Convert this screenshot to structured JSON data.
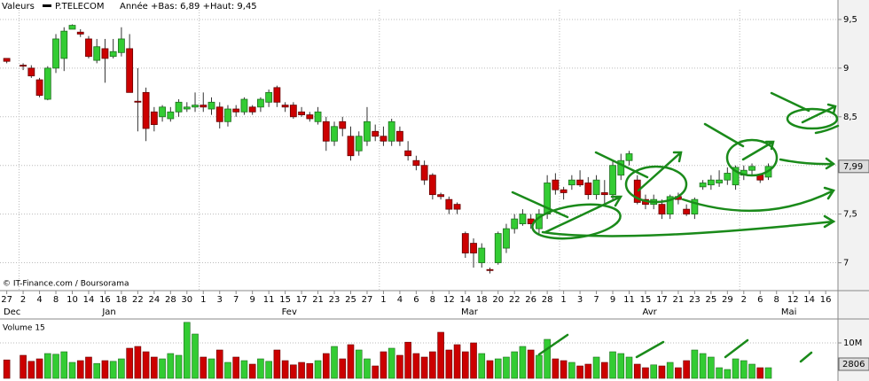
{
  "header": {
    "label": "Valeurs",
    "series_name": "P.TELECOM",
    "range_text": "Année +Bas: 6,89 +Haut: 9,45"
  },
  "copyright": "© IT-Finance.com / Boursorama",
  "volume_title": "Volume 15",
  "volume_last_label": "2806",
  "chart_data": {
    "type": "candlestick",
    "categories": [
      "27",
      null,
      "2",
      null,
      "4",
      null,
      "8",
      null,
      "10",
      null,
      "14",
      null,
      "16",
      null,
      "18",
      null,
      "22",
      null,
      "24",
      null,
      "28",
      null,
      "30",
      null,
      "1",
      null,
      "3",
      null,
      "7",
      null,
      "9",
      null,
      "11",
      null,
      "15",
      null,
      "17",
      null,
      "21",
      null,
      "23",
      null,
      "25",
      null,
      "27",
      null,
      "1",
      null,
      "4",
      null,
      "6",
      null,
      "8",
      null,
      "12",
      null,
      "14",
      null,
      "18",
      null,
      "20",
      null,
      "22",
      null,
      "26",
      null,
      "28",
      null,
      "1",
      null,
      "3",
      null,
      "7",
      null,
      "9",
      null,
      "11",
      null,
      "15",
      null,
      "17",
      null,
      "21",
      null,
      "23",
      null,
      "25",
      null,
      "29",
      null,
      "2",
      null,
      "6",
      null,
      "8",
      null,
      "12",
      null,
      "14",
      null,
      "16",
      null
    ],
    "months": [
      "Dec",
      "Jan",
      "Fev",
      "Mar",
      "Avr",
      "Mai"
    ],
    "open": [
      9.1,
      null,
      9.03,
      9.0,
      8.88,
      8.68,
      9.0,
      9.1,
      9.4,
      9.37,
      9.3,
      9.08,
      9.2,
      9.12,
      9.16,
      9.2,
      8.66,
      8.75,
      8.55,
      8.5,
      8.48,
      8.55,
      8.58,
      8.6,
      8.62,
      8.58,
      8.6,
      8.45,
      8.58,
      8.55,
      8.6,
      8.6,
      8.65,
      8.8,
      8.62,
      8.62,
      8.55,
      8.52,
      8.45,
      8.45,
      8.25,
      8.45,
      8.3,
      8.15,
      8.25,
      8.35,
      8.3,
      8.25,
      8.35,
      8.15,
      8.05,
      8.0,
      7.9,
      7.7,
      7.65,
      7.6,
      7.3,
      7.2,
      7.0,
      6.93,
      7.0,
      7.15,
      7.35,
      7.4,
      7.45,
      7.35,
      7.5,
      7.85,
      7.75,
      7.8,
      7.85,
      7.82,
      7.7,
      7.72,
      7.7,
      7.9,
      8.05,
      7.85,
      7.65,
      7.6,
      7.6,
      7.5,
      7.68,
      7.55,
      7.5,
      7.78,
      7.8,
      7.82,
      7.85,
      7.8,
      7.9,
      7.95,
      7.9,
      7.88,
      null,
      null,
      null,
      null,
      null,
      null,
      null,
      null
    ],
    "high": [
      9.1,
      null,
      9.05,
      9.03,
      8.9,
      9.02,
      9.35,
      9.42,
      9.45,
      9.4,
      9.33,
      9.3,
      9.3,
      9.3,
      9.42,
      9.35,
      9.0,
      8.8,
      8.6,
      8.62,
      8.6,
      8.68,
      8.65,
      8.75,
      8.75,
      8.7,
      8.65,
      8.62,
      8.62,
      8.7,
      8.62,
      8.7,
      8.78,
      8.82,
      8.65,
      8.65,
      8.6,
      8.55,
      8.6,
      8.5,
      8.45,
      8.5,
      8.4,
      8.35,
      8.6,
      8.42,
      8.4,
      8.48,
      8.4,
      8.25,
      8.1,
      8.05,
      7.92,
      7.72,
      7.68,
      7.62,
      7.32,
      7.25,
      7.2,
      6.95,
      7.32,
      7.4,
      7.5,
      7.55,
      7.5,
      7.55,
      7.9,
      7.92,
      7.78,
      7.9,
      7.95,
      7.88,
      7.9,
      7.85,
      8.05,
      8.12,
      8.15,
      7.9,
      7.7,
      7.7,
      7.65,
      7.7,
      7.72,
      7.6,
      7.67,
      7.85,
      7.9,
      7.95,
      7.98,
      8.0,
      8.0,
      8.02,
      7.92,
      8.02,
      null,
      null,
      null,
      null,
      null,
      null,
      null,
      null
    ],
    "low": [
      9.05,
      null,
      8.98,
      8.9,
      8.7,
      8.67,
      8.95,
      8.97,
      9.4,
      9.32,
      9.1,
      9.05,
      8.85,
      9.1,
      9.12,
      8.75,
      8.35,
      8.25,
      8.35,
      8.45,
      8.45,
      8.5,
      8.55,
      8.55,
      8.55,
      8.52,
      8.38,
      8.4,
      8.5,
      8.52,
      8.52,
      8.55,
      8.6,
      8.6,
      8.55,
      8.48,
      8.5,
      8.45,
      8.42,
      8.15,
      8.2,
      8.3,
      8.05,
      8.1,
      8.2,
      8.25,
      8.2,
      8.2,
      8.2,
      8.05,
      7.95,
      7.8,
      7.65,
      7.65,
      7.5,
      7.5,
      7.05,
      6.95,
      6.95,
      6.89,
      6.98,
      7.1,
      7.3,
      7.38,
      7.35,
      7.3,
      7.45,
      7.7,
      7.65,
      7.75,
      7.78,
      7.65,
      7.65,
      7.6,
      7.65,
      7.85,
      8.0,
      7.6,
      7.55,
      7.55,
      7.45,
      7.45,
      7.6,
      7.48,
      7.45,
      7.75,
      7.75,
      7.78,
      7.8,
      7.75,
      7.85,
      7.9,
      7.82,
      7.85,
      null,
      null,
      null,
      null,
      null,
      null,
      null,
      null
    ],
    "close": [
      9.07,
      null,
      9.02,
      8.92,
      8.72,
      9.0,
      9.3,
      9.38,
      9.44,
      9.35,
      9.12,
      9.22,
      9.1,
      9.17,
      9.3,
      8.75,
      8.65,
      8.38,
      8.42,
      8.6,
      8.55,
      8.65,
      8.6,
      8.62,
      8.6,
      8.65,
      8.45,
      8.58,
      8.55,
      8.68,
      8.55,
      8.68,
      8.75,
      8.65,
      8.6,
      8.5,
      8.52,
      8.48,
      8.55,
      8.25,
      8.4,
      8.38,
      8.1,
      8.3,
      8.45,
      8.3,
      8.25,
      8.45,
      8.25,
      8.1,
      8.0,
      7.85,
      7.7,
      7.68,
      7.55,
      7.55,
      7.1,
      7.1,
      7.15,
      6.92,
      7.3,
      7.35,
      7.45,
      7.5,
      7.4,
      7.5,
      7.82,
      7.75,
      7.72,
      7.85,
      7.8,
      7.7,
      7.85,
      7.7,
      8.0,
      8.05,
      8.12,
      7.62,
      7.6,
      7.65,
      7.5,
      7.68,
      7.65,
      7.5,
      7.65,
      7.82,
      7.85,
      7.85,
      7.92,
      7.98,
      7.95,
      7.99,
      7.85,
      7.99,
      null,
      null,
      null,
      null,
      null,
      null,
      null,
      null
    ],
    "up_color": "#33cc33",
    "down_color": "#cc0000",
    "ylim": [
      6.85,
      9.6
    ],
    "yticks": [
      7,
      {
        "value": 7.5,
        "label": "7,5"
      },
      8,
      {
        "value": 8.5,
        "label": "8,5"
      },
      9,
      {
        "value": 9.5,
        "label": "9,5"
      }
    ],
    "last_price": {
      "value": 7.99,
      "label": "7,99"
    },
    "grid": true,
    "volume": [
      5200000,
      null,
      6500000,
      4800000,
      5500000,
      7000000,
      6800000,
      7500000,
      4500000,
      5000000,
      6000000,
      4200000,
      5000000,
      4800000,
      5500000,
      8500000,
      9000000,
      7500000,
      6000000,
      5500000,
      7000000,
      6500000,
      15800000,
      12500000,
      6000000,
      5500000,
      8000000,
      4500000,
      6000000,
      5000000,
      4000000,
      5500000,
      4800000,
      8000000,
      5000000,
      3800000,
      4500000,
      4200000,
      5000000,
      7000000,
      9000000,
      5500000,
      9500000,
      8000000,
      5500000,
      3500000,
      7500000,
      8500000,
      6500000,
      10200000,
      7000000,
      6000000,
      7500000,
      13000000,
      8000000,
      9500000,
      7500000,
      10000000,
      7000000,
      5000000,
      5500000,
      6000000,
      7500000,
      9000000,
      8000000,
      6500000,
      11000000,
      5500000,
      5000000,
      4500000,
      3500000,
      4000000,
      6000000,
      4500000,
      7500000,
      7000000,
      6000000,
      4000000,
      3000000,
      3800000,
      3500000,
      4500000,
      3000000,
      5000000,
      8000000,
      7000000,
      6000000,
      3000000,
      2500000,
      5500000,
      5000000,
      4000000,
      3000000,
      3000000,
      null,
      null,
      null,
      null,
      null,
      null,
      null,
      null
    ],
    "volume_ylim": [
      0,
      16000000
    ],
    "volume_yticks": [
      {
        "value": 10000000,
        "label": "10M"
      }
    ]
  }
}
